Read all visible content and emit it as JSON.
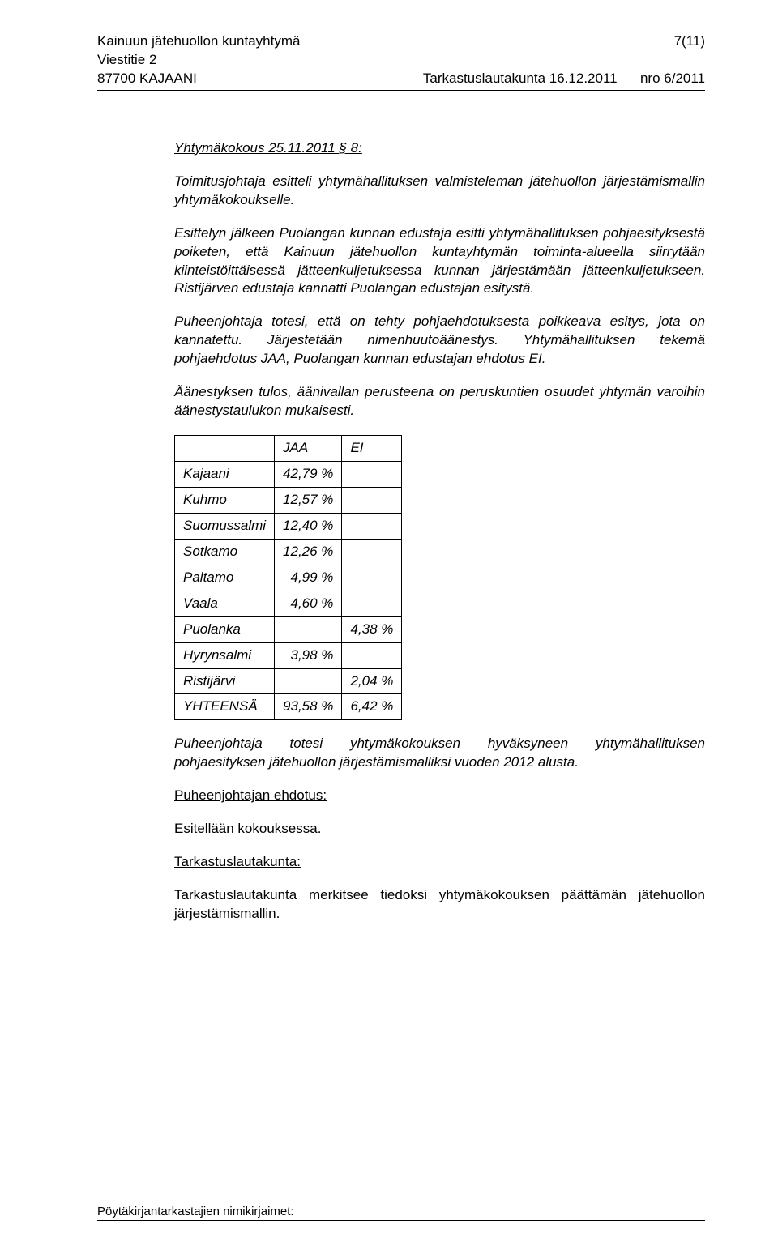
{
  "header": {
    "org": "Kainuun jätehuollon kuntayhtymä",
    "address1": "Viestitie 2",
    "address2": "87700 KAJAANI",
    "pagenum": "7(11)",
    "committee": "Tarkastuslautakunta 16.12.2011",
    "docnum": "nro 6/2011"
  },
  "meeting": {
    "title": "Yhtymäkokous 25.11.2011 § 8:"
  },
  "paragraphs": {
    "p1": "Toimitusjohtaja esitteli yhtymähallituksen valmisteleman jätehuollon järjestämismallin yhtymäkokoukselle.",
    "p2": "Esittelyn jälkeen Puolangan kunnan edustaja esitti yhtymähallituksen pohjaesityksestä poiketen, että Kainuun jätehuollon kuntayhtymän toiminta-alueella siirrytään kiinteistöittäisessä jätteenkuljetuksessa kunnan järjestämään jätteenkuljetukseen. Ristijärven edustaja kannatti Puolangan edustajan esitystä.",
    "p3": "Puheenjohtaja totesi, että on tehty pohjaehdotuksesta poikkeava esitys, jota on kannatettu. Järjestetään nimenhuutoäänestys. Yhtymähallituksen tekemä pohjaehdotus JAA, Puolangan kunnan edustajan ehdotus EI.",
    "p4": "Äänestyksen tulos, äänivallan perusteena on peruskuntien osuudet yhtymän varoihin äänestystaulukon mukaisesti.",
    "p5": "Puheenjohtaja totesi yhtymäkokouksen hyväksyneen yhtymähallituksen pohjaesityksen jätehuollon järjestämismalliksi vuoden 2012 alusta."
  },
  "vote": {
    "headers": {
      "blank": "",
      "jaa": "JAA",
      "ei": "EI"
    },
    "rows": [
      {
        "name": "Kajaani",
        "jaa": "42,79 %",
        "ei": ""
      },
      {
        "name": "Kuhmo",
        "jaa": "12,57 %",
        "ei": ""
      },
      {
        "name": "Suomussalmi",
        "jaa": "12,40 %",
        "ei": ""
      },
      {
        "name": "Sotkamo",
        "jaa": "12,26 %",
        "ei": ""
      },
      {
        "name": "Paltamo",
        "jaa": "4,99 %",
        "ei": ""
      },
      {
        "name": "Vaala",
        "jaa": "4,60 %",
        "ei": ""
      },
      {
        "name": "Puolanka",
        "jaa": "",
        "ei": "4,38 %"
      },
      {
        "name": "Hyrynsalmi",
        "jaa": "3,98 %",
        "ei": ""
      },
      {
        "name": "Ristijärvi",
        "jaa": "",
        "ei": "2,04 %"
      },
      {
        "name": "YHTEENSÄ",
        "jaa": "93,58 %",
        "ei": "6,42 %"
      }
    ]
  },
  "sections": {
    "chair_proposal_label": "Puheenjohtajan ehdotus:",
    "chair_proposal_text": "Esitellään kokouksessa.",
    "committee_label": "Tarkastuslautakunta:",
    "committee_text": "Tarkastuslautakunta merkitsee tiedoksi yhtymäkokouksen päättämän jätehuollon järjestämismallin."
  },
  "footer": {
    "label": "Pöytäkirjantarkastajien nimikirjaimet:"
  }
}
